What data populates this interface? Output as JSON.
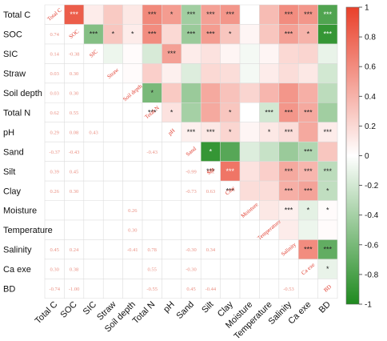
{
  "chart_data": {
    "type": "heatmap",
    "title": "",
    "variables": [
      "Total C",
      "SOC",
      "SIC",
      "Straw",
      "Soil depth",
      "Total N",
      "pH",
      "Sand",
      "Silt",
      "Clay",
      "Moisture",
      "Temperature",
      "Salinity",
      "Ca exe",
      "BD"
    ],
    "colorbar": {
      "ticks": [
        1,
        0.8,
        0.6,
        0.4,
        0.2,
        0,
        -0.2,
        -0.4,
        -0.6,
        -0.8,
        -1
      ],
      "range": [
        -1,
        1
      ]
    },
    "colors": {
      "positive": "#e9402a",
      "negative": "#1f8a1f",
      "neutral": "#ffffff",
      "grid": "#dcdcdc",
      "lower_text": "#e36a58",
      "diag_text": "#e03a2c"
    },
    "upper_values": [
      [
        null,
        0.85,
        0.1,
        0.28,
        0.12,
        0.62,
        0.52,
        -0.42,
        0.5,
        0.55,
        0.0,
        0.35,
        0.6,
        0.55,
        -0.78
      ],
      [
        null,
        null,
        -0.55,
        0.3,
        0.1,
        0.6,
        0.2,
        -0.45,
        0.52,
        0.3,
        0.05,
        0.3,
        0.5,
        0.4,
        -0.9
      ],
      [
        null,
        null,
        null,
        -0.08,
        0.02,
        -0.18,
        0.5,
        0.1,
        0.15,
        0.05,
        -0.05,
        0.05,
        0.2,
        0.22,
        -0.1
      ],
      [
        null,
        null,
        null,
        null,
        0.02,
        0.25,
        0.08,
        -0.15,
        0.2,
        0.18,
        -0.05,
        0.1,
        0.18,
        0.12,
        -0.2
      ],
      [
        null,
        null,
        null,
        null,
        null,
        -0.6,
        0.28,
        -0.45,
        0.45,
        0.32,
        0.22,
        0.38,
        0.55,
        0.42,
        -0.3
      ],
      [
        null,
        null,
        null,
        null,
        null,
        null,
        0.15,
        -0.4,
        0.45,
        0.3,
        0.0,
        -0.2,
        0.55,
        0.45,
        -0.42
      ],
      [
        null,
        null,
        null,
        null,
        null,
        null,
        null,
        0.08,
        0.12,
        0.22,
        0.05,
        0.12,
        0.18,
        0.45,
        0.1
      ],
      [
        null,
        null,
        null,
        null,
        null,
        null,
        null,
        null,
        -0.9,
        -0.75,
        -0.15,
        -0.25,
        -0.45,
        -0.35,
        0.3
      ],
      [
        null,
        null,
        null,
        null,
        null,
        null,
        null,
        null,
        null,
        0.72,
        0.15,
        0.25,
        0.45,
        0.38,
        -0.3
      ],
      [
        null,
        null,
        null,
        null,
        null,
        null,
        null,
        null,
        null,
        null,
        0.18,
        0.18,
        0.42,
        0.48,
        -0.28
      ],
      [
        null,
        null,
        null,
        null,
        null,
        null,
        null,
        null,
        null,
        null,
        null,
        0.12,
        0.08,
        -0.12,
        0.02
      ],
      [
        null,
        null,
        null,
        null,
        null,
        null,
        null,
        null,
        null,
        null,
        null,
        null,
        0.1,
        -0.08,
        0.02
      ],
      [
        null,
        null,
        null,
        null,
        null,
        null,
        null,
        null,
        null,
        null,
        null,
        null,
        null,
        0.6,
        -0.7
      ],
      [
        null,
        null,
        null,
        null,
        null,
        null,
        null,
        null,
        null,
        null,
        null,
        null,
        null,
        null,
        -0.1
      ],
      [
        null,
        null,
        null,
        null,
        null,
        null,
        null,
        null,
        null,
        null,
        null,
        null,
        null,
        null,
        null
      ]
    ],
    "significance": [
      [
        "",
        "***",
        "",
        "",
        "",
        "***",
        "*",
        "***",
        "***",
        "***",
        "",
        "",
        "***",
        "***",
        "***"
      ],
      [
        "",
        "",
        "***",
        "*",
        "*",
        "***",
        "",
        "***",
        "***",
        "*",
        "",
        "",
        "***",
        "*",
        "***"
      ],
      [
        "",
        "",
        "",
        "",
        "",
        "",
        "***",
        "",
        "",
        "",
        "",
        "",
        "",
        "",
        ""
      ],
      [
        "",
        "",
        "",
        "",
        "",
        "",
        "",
        "",
        "",
        "",
        "",
        "",
        "",
        "",
        ""
      ],
      [
        "",
        "",
        "",
        "",
        "",
        "*",
        "",
        "",
        "",
        "",
        "",
        "",
        "",
        "",
        ""
      ],
      [
        "",
        "",
        "",
        "",
        "",
        "***",
        "*",
        "",
        "",
        "*",
        "",
        "***",
        "***",
        "***",
        ""
      ],
      [
        "",
        "",
        "",
        "",
        "",
        "",
        "",
        "***",
        "***",
        "*",
        "",
        "*",
        "***",
        "",
        "***"
      ],
      [
        "",
        "",
        "",
        "",
        "",
        "",
        "",
        "",
        "*",
        "",
        "",
        "",
        "",
        "***",
        ""
      ],
      [
        "",
        "",
        "",
        "",
        "",
        "",
        "",
        "",
        "***",
        "***",
        "",
        "",
        "***",
        "***",
        "***"
      ],
      [
        "",
        "",
        "",
        "",
        "",
        "",
        "",
        "",
        "",
        "***",
        "",
        "",
        "***",
        "***",
        "*"
      ],
      [
        "",
        "",
        "",
        "",
        "",
        "",
        "",
        "",
        "",
        "",
        "",
        "",
        "***",
        "*",
        "*"
      ],
      [
        "",
        "",
        "",
        "",
        "",
        "",
        "",
        "",
        "",
        "",
        "",
        "",
        "",
        "",
        ""
      ],
      [
        "",
        "",
        "",
        "",
        "",
        "",
        "",
        "",
        "",
        "",
        "",
        "",
        "",
        "***",
        "***"
      ],
      [
        "",
        "",
        "",
        "",
        "",
        "",
        "",
        "",
        "",
        "",
        "",
        "",
        "",
        "",
        "*"
      ],
      [
        "",
        "",
        "",
        "",
        "",
        "",
        "",
        "",
        "",
        "",
        "",
        "",
        "",
        "",
        ""
      ]
    ],
    "lower_labels": [
      {
        "row": 1,
        "col": 0,
        "text": "0.74"
      },
      {
        "row": 2,
        "col": 0,
        "text": "0.14"
      },
      {
        "row": 2,
        "col": 1,
        "text": "-0.38"
      },
      {
        "row": 3,
        "col": 0,
        "text": "0.03"
      },
      {
        "row": 3,
        "col": 1,
        "text": "0.30"
      },
      {
        "row": 4,
        "col": 0,
        "text": "0.03"
      },
      {
        "row": 4,
        "col": 1,
        "text": "0.30"
      },
      {
        "row": 5,
        "col": 0,
        "text": "0.62"
      },
      {
        "row": 5,
        "col": 1,
        "text": "0.55"
      },
      {
        "row": 6,
        "col": 0,
        "text": "0.29"
      },
      {
        "row": 6,
        "col": 1,
        "text": "0.08"
      },
      {
        "row": 6,
        "col": 2,
        "text": "0.43"
      },
      {
        "row": 7,
        "col": 0,
        "text": "-0.37"
      },
      {
        "row": 7,
        "col": 1,
        "text": "-0.43"
      },
      {
        "row": 7,
        "col": 5,
        "text": "-0.43"
      },
      {
        "row": 8,
        "col": 0,
        "text": "0.39"
      },
      {
        "row": 8,
        "col": 1,
        "text": "0.45"
      },
      {
        "row": 8,
        "col": 7,
        "text": "-0.99"
      },
      {
        "row": 8,
        "col": 8,
        "text": "Silt"
      },
      {
        "row": 9,
        "col": 0,
        "text": "0.26"
      },
      {
        "row": 9,
        "col": 1,
        "text": "0.30"
      },
      {
        "row": 9,
        "col": 7,
        "text": "-0.73"
      },
      {
        "row": 9,
        "col": 8,
        "text": "0.63"
      },
      {
        "row": 10,
        "col": 4,
        "text": "0.26"
      },
      {
        "row": 11,
        "col": 4,
        "text": "0.30"
      },
      {
        "row": 12,
        "col": 0,
        "text": "0.45"
      },
      {
        "row": 12,
        "col": 1,
        "text": "0.24"
      },
      {
        "row": 12,
        "col": 4,
        "text": "-0.41"
      },
      {
        "row": 12,
        "col": 5,
        "text": "0.78"
      },
      {
        "row": 12,
        "col": 7,
        "text": "-0.30"
      },
      {
        "row": 12,
        "col": 8,
        "text": "0.34"
      },
      {
        "row": 13,
        "col": 0,
        "text": "0.30"
      },
      {
        "row": 13,
        "col": 1,
        "text": "0.38"
      },
      {
        "row": 13,
        "col": 5,
        "text": "0.55"
      },
      {
        "row": 13,
        "col": 7,
        "text": "-0.30"
      },
      {
        "row": 14,
        "col": 0,
        "text": "-0.74"
      },
      {
        "row": 14,
        "col": 1,
        "text": "-1.00"
      },
      {
        "row": 14,
        "col": 5,
        "text": "-0.55"
      },
      {
        "row": 14,
        "col": 7,
        "text": "0.45"
      },
      {
        "row": 14,
        "col": 8,
        "text": "-0.44"
      },
      {
        "row": 14,
        "col": 12,
        "text": "-0.53"
      }
    ]
  }
}
